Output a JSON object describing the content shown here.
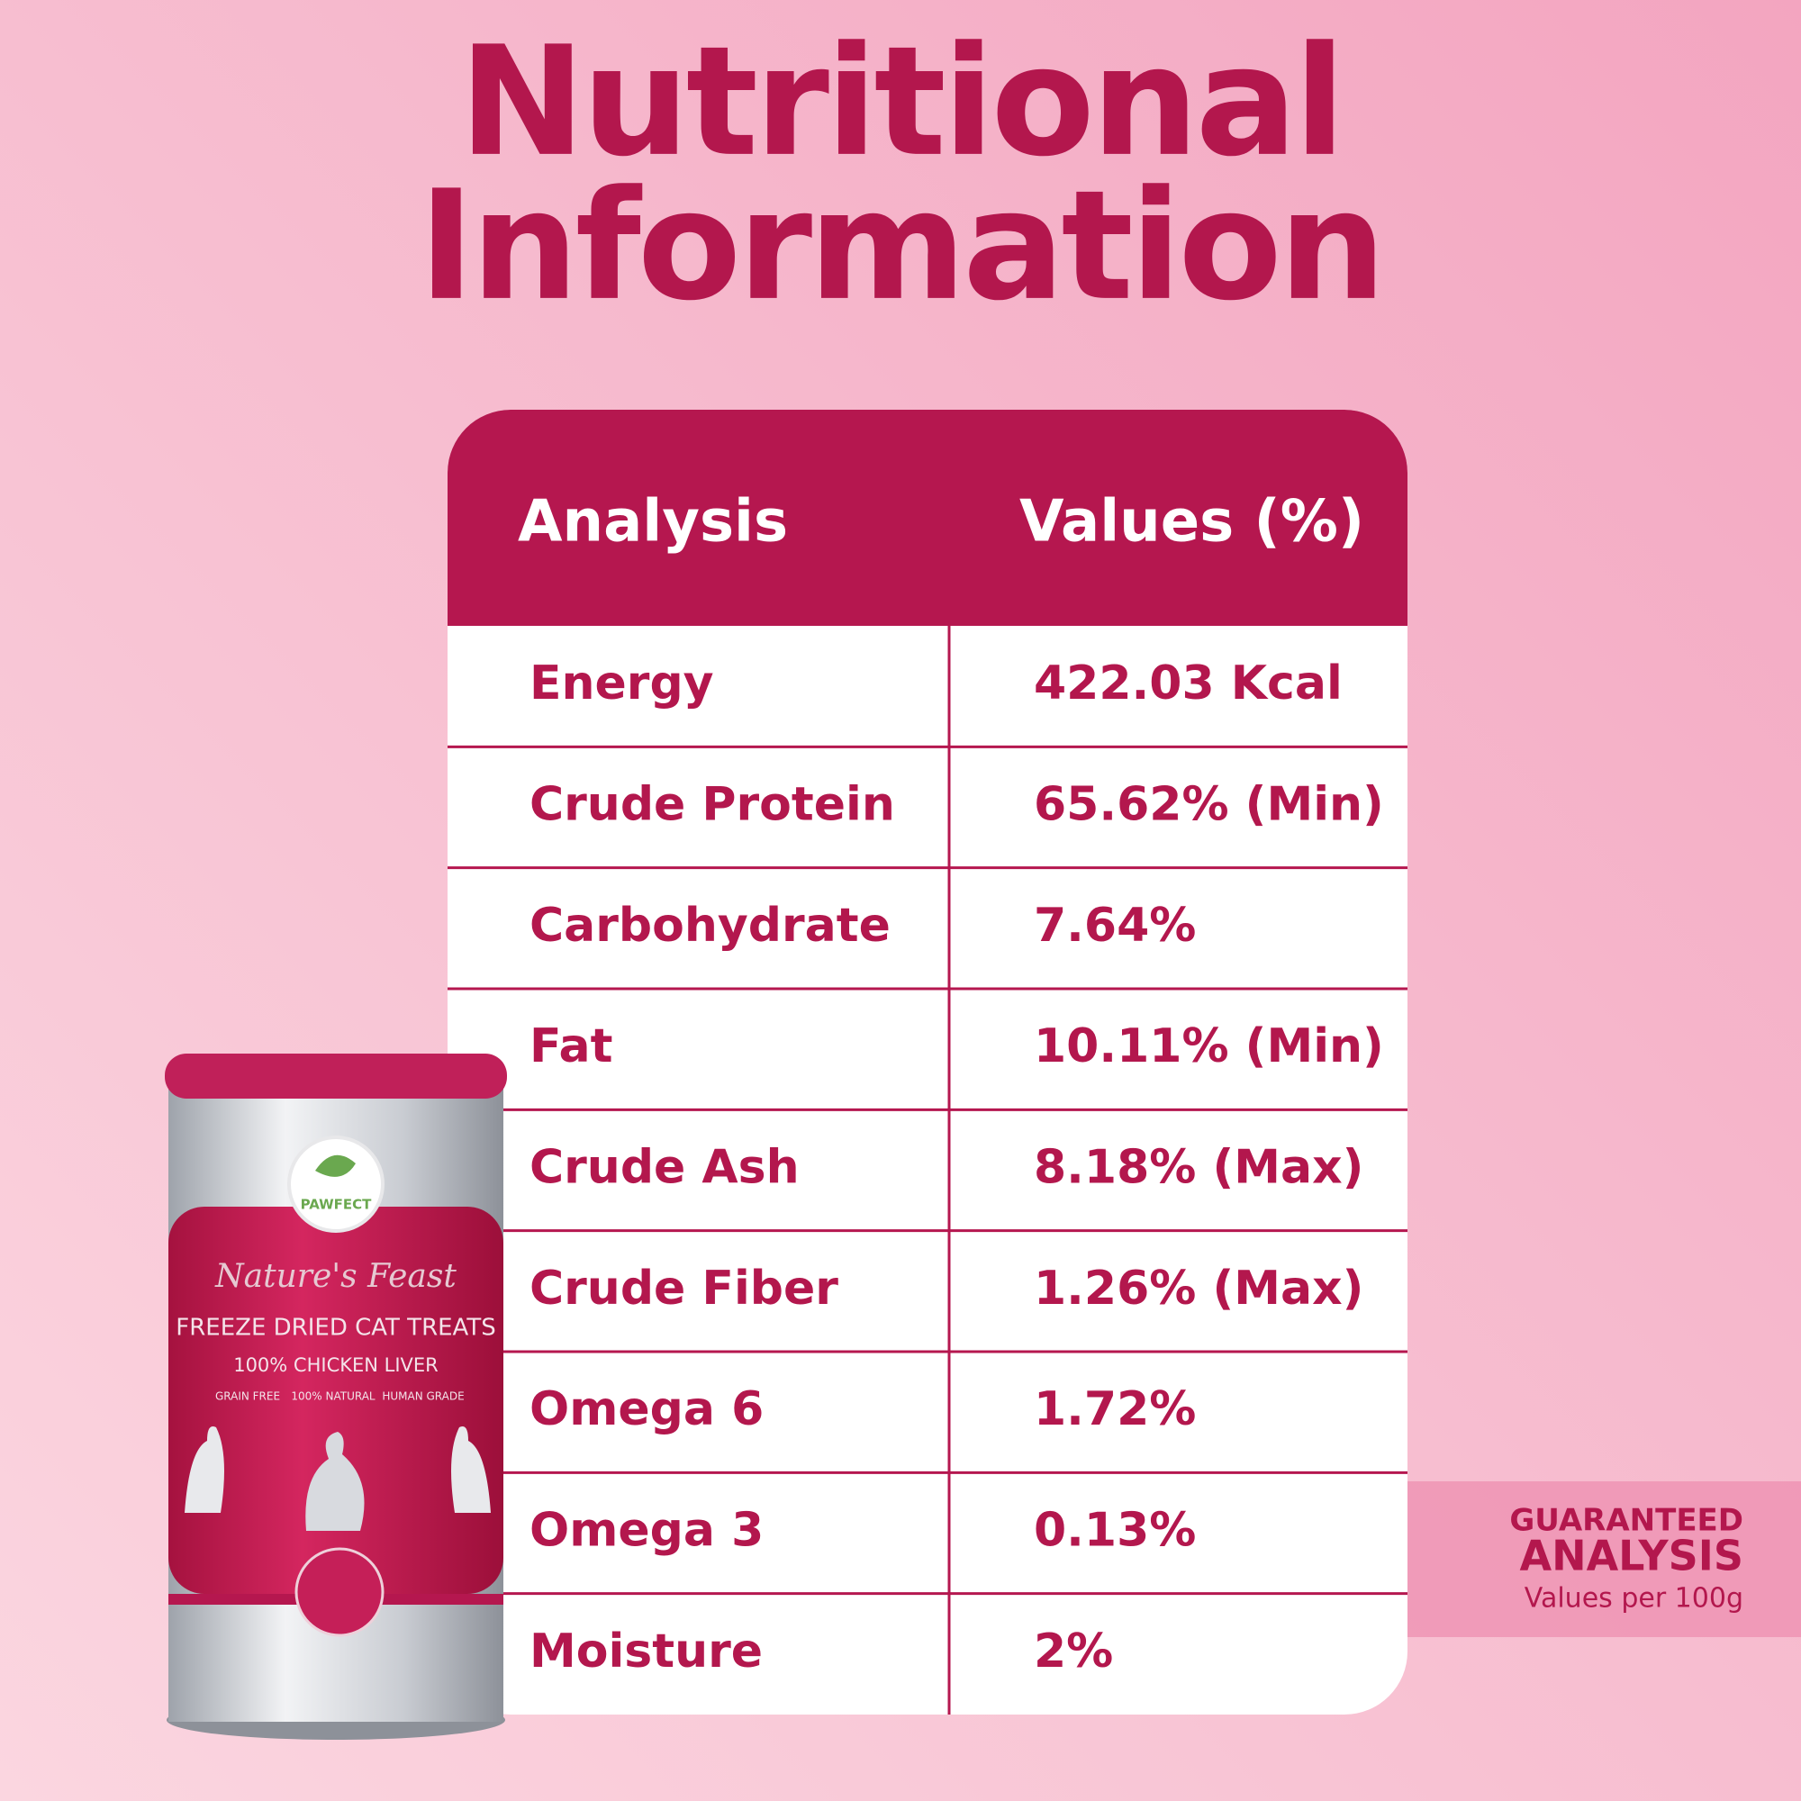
{
  "header": {
    "title_line1": "Nutritional",
    "title_line2": "Information"
  },
  "table": {
    "columns": [
      "Analysis",
      "Values (%)"
    ],
    "rows": [
      [
        "Energy",
        "422.03 Kcal"
      ],
      [
        "Crude Protein",
        "65.62% (Min)"
      ],
      [
        "Carbohydrate",
        "7.64%"
      ],
      [
        "Fat",
        "10.11% (Min)"
      ],
      [
        "Crude Ash",
        "8.18% (Max)"
      ],
      [
        "Crude Fiber",
        "1.26% (Max)"
      ],
      [
        "Omega 6",
        "1.72%"
      ],
      [
        "Omega 3",
        "0.13%"
      ],
      [
        "Moisture",
        "2%"
      ]
    ]
  },
  "badge": {
    "line1": "GUARANTEED",
    "line2": "ANALYSIS",
    "line3": "Values per 100g"
  },
  "product": {
    "brand": "PAWFECT",
    "name": "Nature's Feast",
    "title": "FREEZE DRIED CAT TREATS",
    "subtitle": "100% CHICKEN LIVER",
    "features": [
      "GRAIN FREE",
      "100% NATURAL",
      "HUMAN GRADE"
    ]
  }
}
